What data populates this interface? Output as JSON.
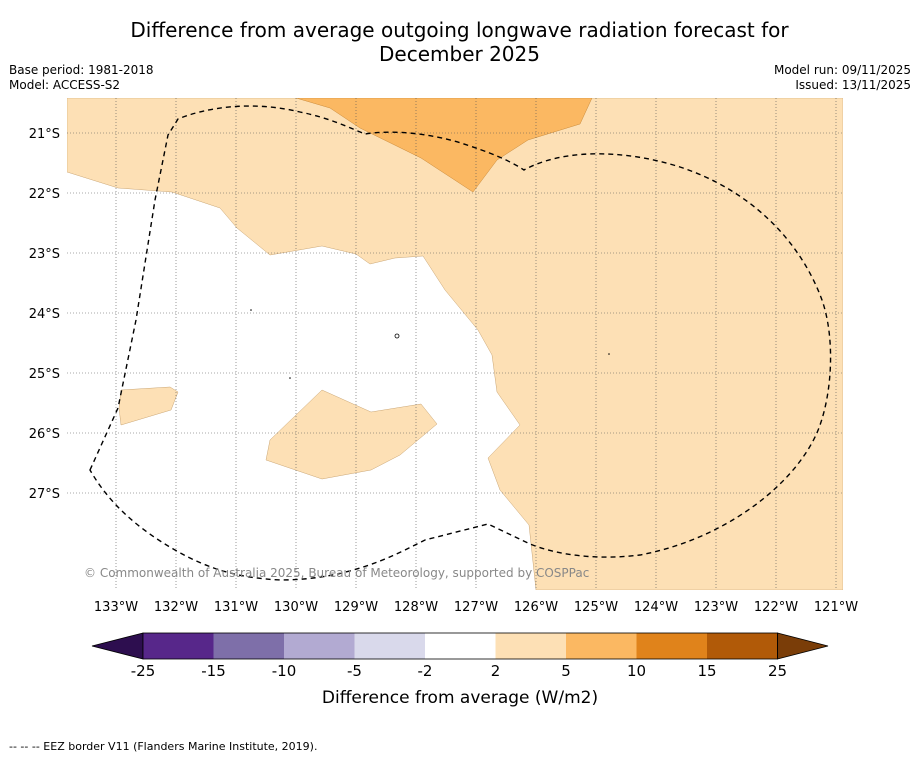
{
  "title": {
    "line1": "Difference from average outgoing longwave radiation forecast for",
    "line2": "December 2025"
  },
  "meta": {
    "base_period": "Base period: 1981-2018",
    "model": "Model: ACCESS-S2",
    "model_run": "Model run: 09/11/2025",
    "issued": "Issued: 13/11/2025"
  },
  "map": {
    "lat_labels": [
      "21°S",
      "22°S",
      "23°S",
      "24°S",
      "25°S",
      "26°S",
      "27°S"
    ],
    "lon_labels": [
      "133°W",
      "132°W",
      "131°W",
      "130°W",
      "129°W",
      "128°W",
      "127°W",
      "126°W",
      "125°W",
      "124°W",
      "123°W",
      "122°W",
      "121°W"
    ],
    "copyright": "© Commonwealth of Australia 2025, Bureau of Meteorology, supported by COSPPac"
  },
  "colorbar": {
    "tick_labels": [
      "-25",
      "-15",
      "-10",
      "-5",
      "-2",
      "2",
      "5",
      "10",
      "15",
      "25"
    ],
    "label": "Difference from average (W/m2)",
    "colors": [
      "#2d0e4f",
      "#57278a",
      "#7e6fa9",
      "#b2aad2",
      "#d9d9eb",
      "#ffffff",
      "#fde0b5",
      "#fbb862",
      "#e0831b",
      "#b15a08",
      "#7a3d08"
    ]
  },
  "footer": "--  --  -- EEZ border V11 (Flanders Marine Institute, 2019)."
}
